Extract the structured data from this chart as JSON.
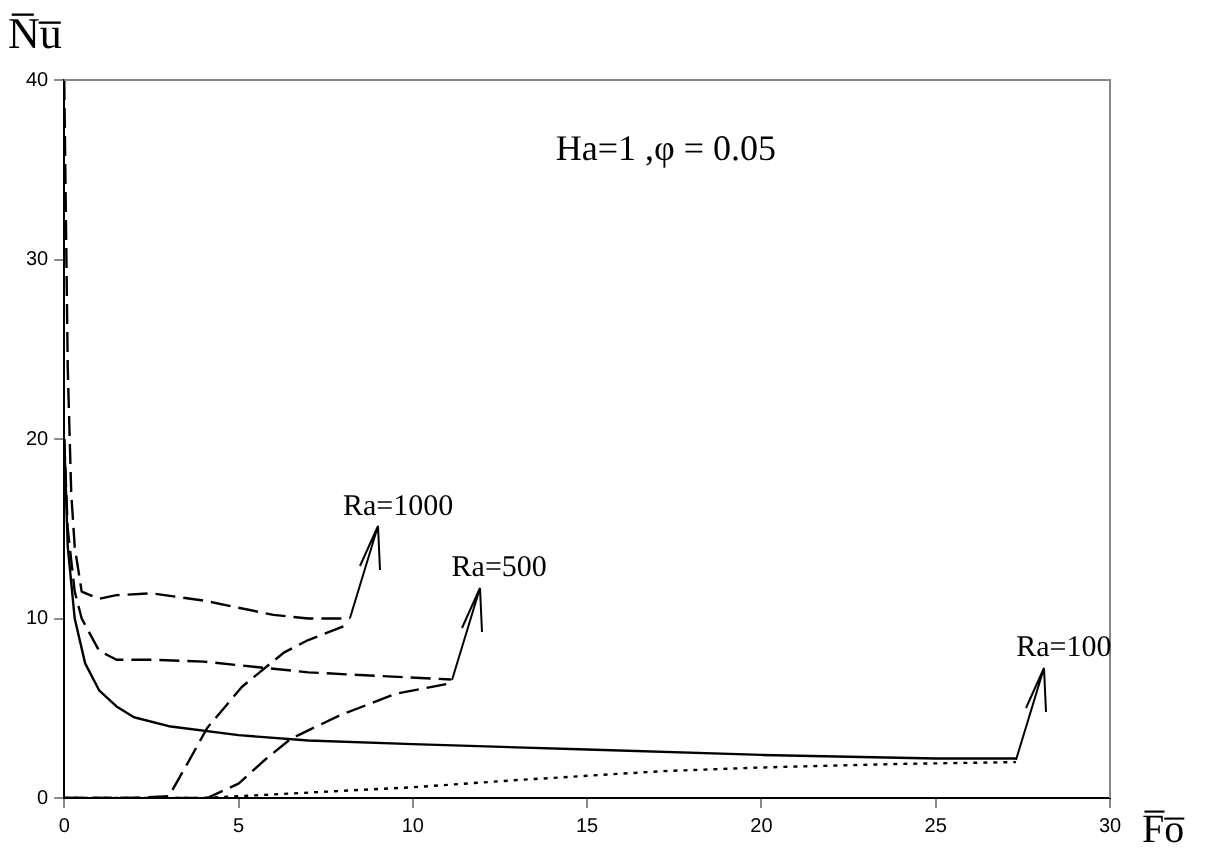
{
  "chart_data": {
    "type": "line",
    "xlabel": "F̅o̅",
    "ylabel": "N̅u̅",
    "xlim": [
      0,
      30
    ],
    "xticks": [
      0,
      5,
      10,
      15,
      20,
      25,
      30
    ],
    "ylim": [
      0,
      40
    ],
    "yticks": [
      0,
      10,
      20,
      30,
      40
    ],
    "grid": false,
    "legend": false,
    "marker": "none",
    "annotations": [
      "Ha=1 ,φ = 0.05",
      {
        "text": "Ra=1000",
        "x": 8.2,
        "y": 10
      },
      {
        "text": "Ra=500",
        "x": 11.1,
        "y": 6.6
      },
      {
        "text": "Ra=100",
        "x": 27.3,
        "y": 2.1
      }
    ],
    "series": [
      {
        "color": "#000000",
        "line_style": "dashed",
        "x": [
          0,
          0.1,
          0.2,
          0.3,
          0.5,
          1,
          1.5,
          2.5,
          4,
          5,
          6,
          7,
          8.2
        ],
        "values": [
          40,
          24,
          17,
          14,
          11.5,
          11.1,
          11.3,
          11.4,
          11,
          10.6,
          10.2,
          10,
          10
        ]
      },
      {
        "color": "#000000",
        "line_style": "dashed",
        "x": [
          0,
          1,
          2,
          3,
          3.5,
          4.1,
          5.1,
          6.3,
          7,
          8.2
        ],
        "values": [
          0,
          0,
          0,
          0.1,
          1.8,
          3.9,
          6.2,
          8.1,
          8.8,
          9.7
        ]
      },
      {
        "color": "#000000",
        "line_style": "dashed",
        "x": [
          0,
          0.1,
          0.3,
          0.5,
          1,
          1.5,
          2.5,
          4,
          5.5,
          7,
          9,
          11.1
        ],
        "values": [
          20,
          15,
          11.5,
          10,
          8.2,
          7.7,
          7.7,
          7.6,
          7.3,
          7,
          6.8,
          6.6
        ]
      },
      {
        "color": "#000000",
        "line_style": "dashed",
        "x": [
          0,
          2,
          4.1,
          5,
          5.8,
          6.5,
          7.9,
          9.5,
          11.1
        ],
        "values": [
          0,
          0,
          0,
          0.8,
          2.2,
          3.3,
          4.6,
          5.8,
          6.4
        ]
      },
      {
        "color": "#000000",
        "line_style": "solid",
        "x": [
          0,
          0.1,
          0.3,
          0.6,
          1,
          1.5,
          2,
          3,
          5,
          7,
          10,
          15,
          20,
          25,
          27.3
        ],
        "values": [
          20,
          14,
          10,
          7.5,
          6,
          5.1,
          4.5,
          4,
          3.5,
          3.2,
          3,
          2.7,
          2.4,
          2.2,
          2.2
        ]
      },
      {
        "color": "#000000",
        "line_style": "dotted",
        "x": [
          0,
          4,
          5,
          7,
          10,
          13,
          17.2,
          20,
          24,
          27.3
        ],
        "values": [
          0,
          0,
          0.1,
          0.3,
          0.6,
          1,
          1.5,
          1.7,
          1.9,
          2
        ]
      }
    ]
  }
}
